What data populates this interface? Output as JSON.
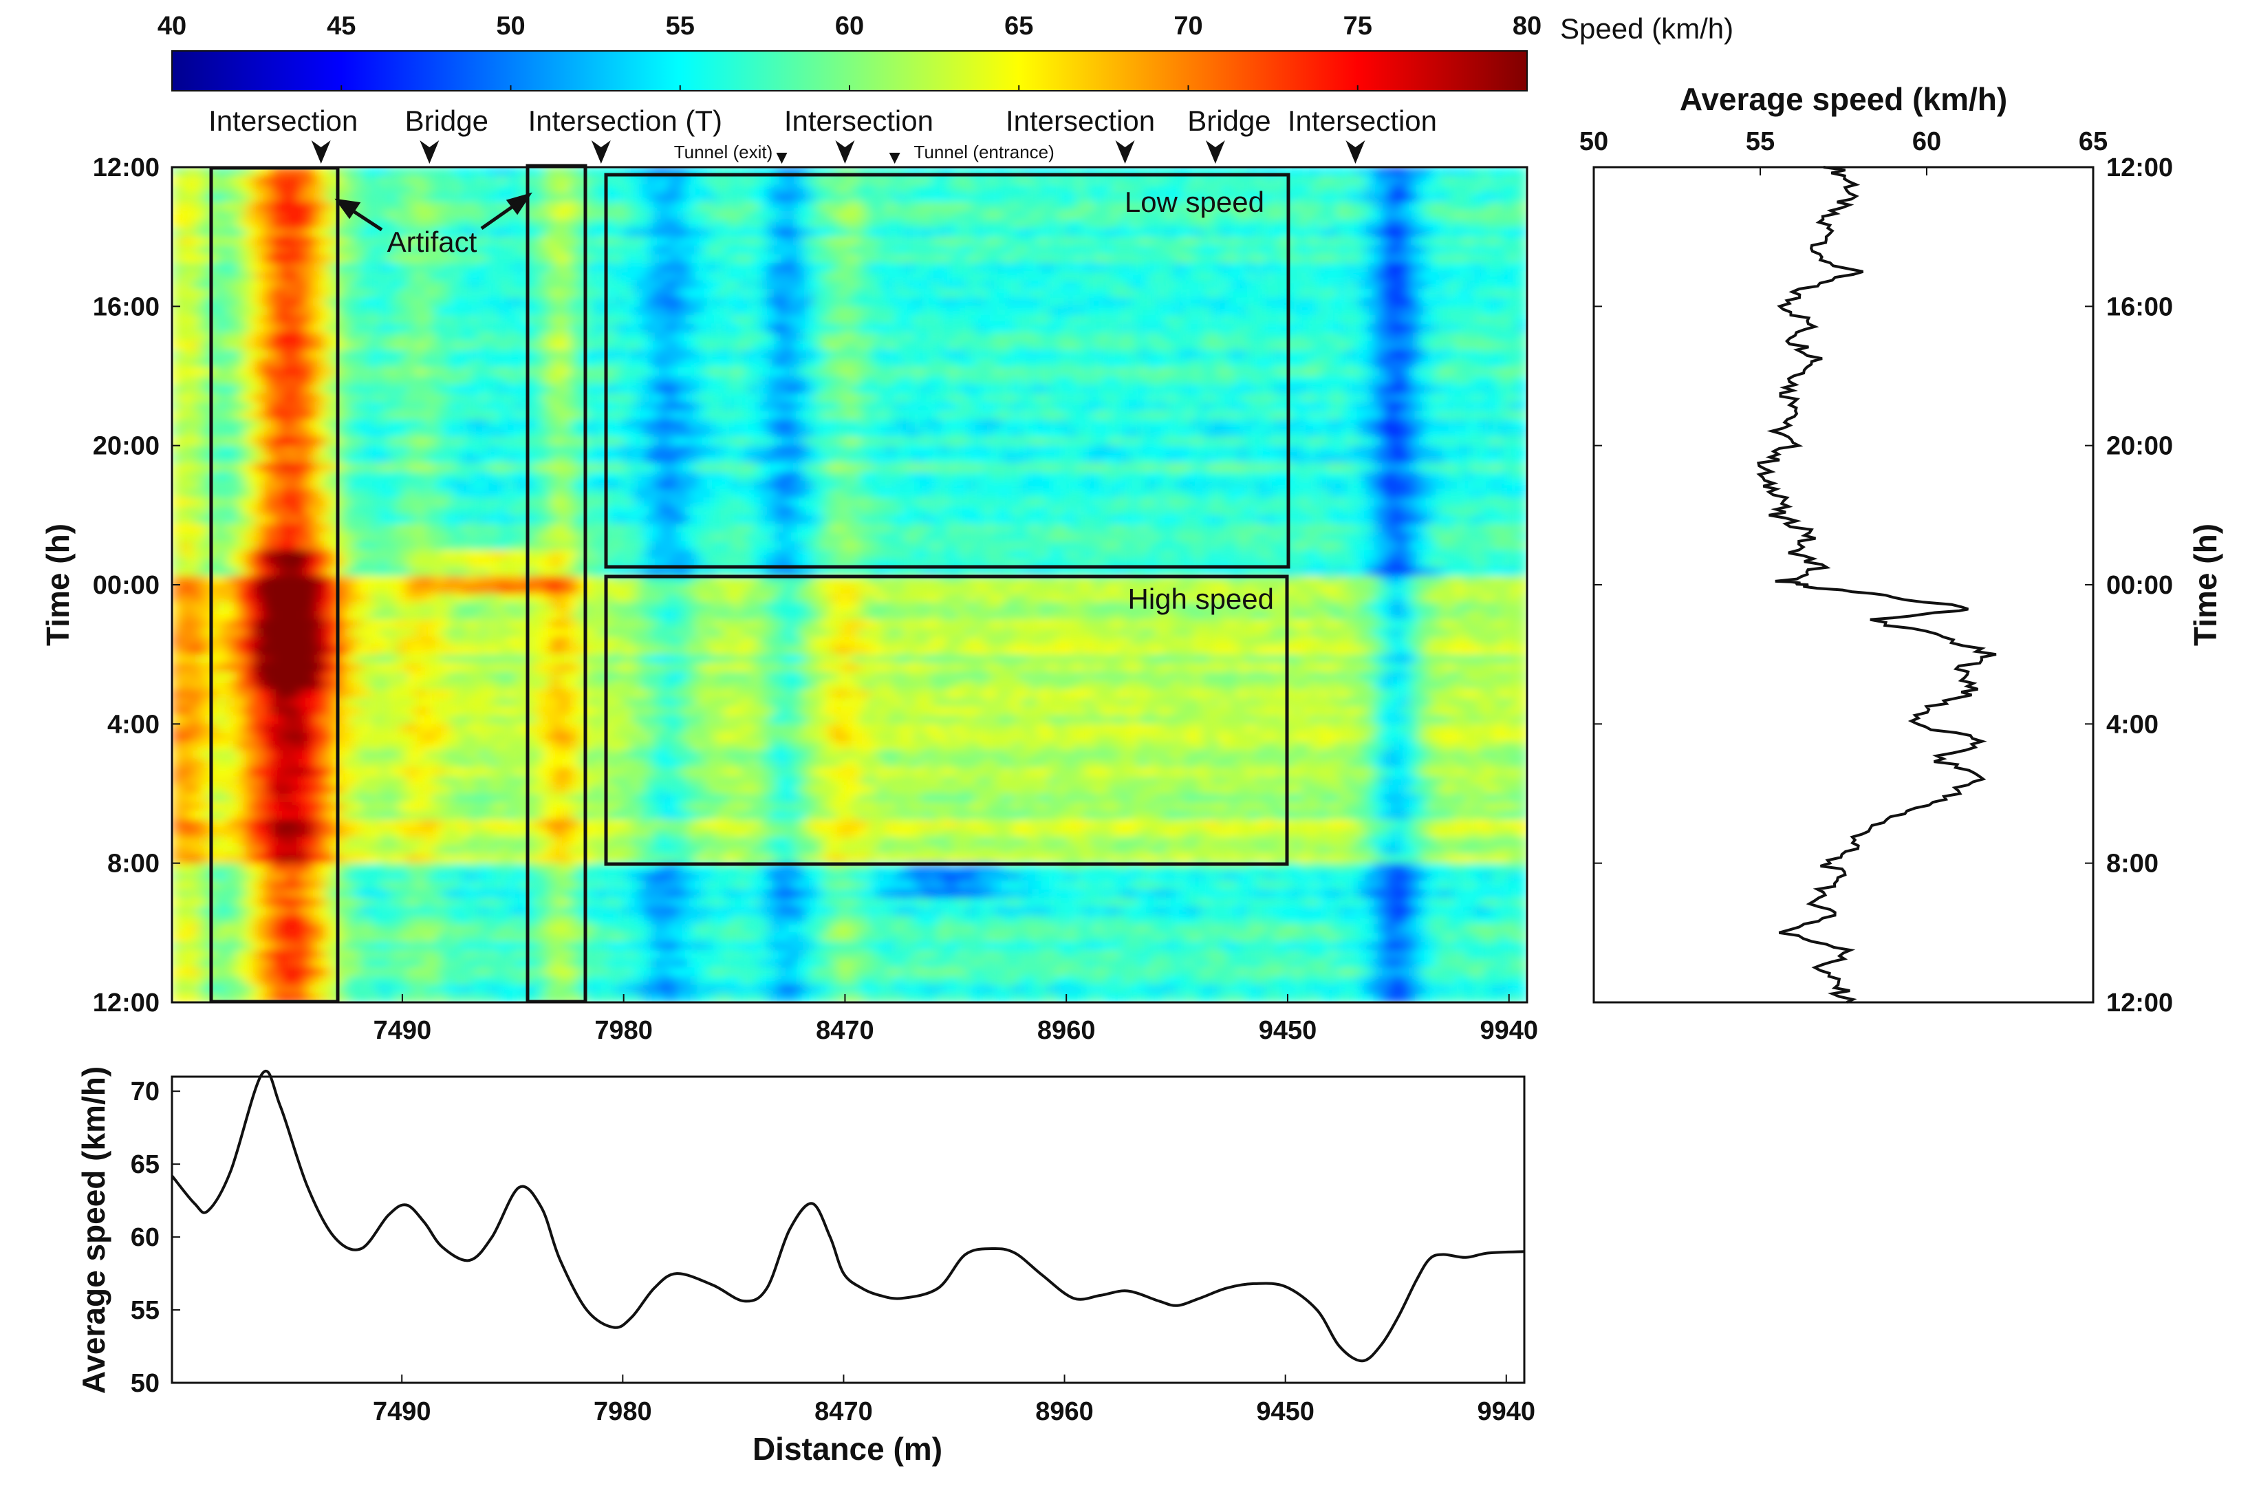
{
  "colorbar": {
    "label": "Speed (km/h)",
    "range": [
      40,
      80
    ],
    "ticks": [
      "40",
      "45",
      "50",
      "55",
      "60",
      "65",
      "70",
      "75",
      "80"
    ],
    "colormap": "jet"
  },
  "heatmap": {
    "ylabel": "Time (h)",
    "y_ticks": [
      "12:00",
      "16:00",
      "20:00",
      "00:00",
      "4:00",
      "8:00",
      "12:00"
    ],
    "x_ticks": [
      "7490",
      "7980",
      "8470",
      "8960",
      "9450",
      "9940"
    ],
    "distance_range_m": [
      6980,
      9980
    ],
    "landmarks": [
      {
        "label": "Intersection",
        "distance_m": 7310
      },
      {
        "label": "Bridge",
        "distance_m": 7550
      },
      {
        "label": "Intersection (T)",
        "distance_m": 7930
      },
      {
        "label": "Tunnel (exit)",
        "distance_m": 8330
      },
      {
        "label": "Intersection",
        "distance_m": 8470
      },
      {
        "label": "Tunnel (entrance)",
        "distance_m": 8580
      },
      {
        "label": "Intersection",
        "distance_m": 9090
      },
      {
        "label": "Bridge",
        "distance_m": 9290
      },
      {
        "label": "Intersection",
        "distance_m": 9600
      }
    ],
    "annotations": {
      "artifact": "Artifact",
      "low_speed": "Low speed",
      "high_speed": "High speed"
    },
    "low_speed_box": {
      "distance_m": [
        7990,
        9495
      ],
      "time_h": [
        0.2,
        11.6
      ]
    },
    "high_speed_box": {
      "distance_m": [
        7990,
        9495
      ],
      "time_h": [
        11.8,
        20.0
      ]
    },
    "artifact_boxes": [
      {
        "distance_m": [
          7070,
          7350
        ],
        "time_h": [
          0,
          24
        ]
      },
      {
        "distance_m": [
          7770,
          7900
        ],
        "time_h": [
          0,
          24
        ]
      }
    ]
  },
  "chart_data": [
    {
      "type": "heatmap",
      "title": "",
      "xlabel": "Distance (m)",
      "ylabel": "Time (h)",
      "x_range": [
        6980,
        9980
      ],
      "y_range_hours_from_noon": [
        0,
        24
      ],
      "value_range": [
        40,
        80
      ],
      "value_label": "Speed (km/h)"
    },
    {
      "type": "line",
      "title": "",
      "xlabel": "Distance (m)",
      "ylabel": "Average speed (km/h)",
      "xlim": [
        6980,
        9980
      ],
      "ylim": [
        50,
        71
      ],
      "y_ticks": [
        "50",
        "55",
        "60",
        "65",
        "70"
      ],
      "x_ticks": [
        "7490",
        "7980",
        "8470",
        "8960",
        "9450",
        "9940"
      ],
      "x": [
        6980,
        7030,
        7060,
        7110,
        7180,
        7220,
        7280,
        7340,
        7400,
        7460,
        7500,
        7540,
        7580,
        7640,
        7690,
        7750,
        7800,
        7840,
        7900,
        7960,
        8000,
        8050,
        8100,
        8180,
        8250,
        8300,
        8350,
        8400,
        8440,
        8470,
        8510,
        8550,
        8600,
        8680,
        8740,
        8800,
        8850,
        8910,
        8980,
        9040,
        9100,
        9170,
        9210,
        9260,
        9320,
        9380,
        9450,
        9520,
        9570,
        9620,
        9660,
        9700,
        9740,
        9770,
        9800,
        9850,
        9900,
        9980
      ],
      "values": [
        64.2,
        62.3,
        61.8,
        64.5,
        71.2,
        69.0,
        63.5,
        60.0,
        59.2,
        61.5,
        62.2,
        61.0,
        59.3,
        58.4,
        60.0,
        63.4,
        62.0,
        58.5,
        55.0,
        53.8,
        54.5,
        56.5,
        57.5,
        56.7,
        55.6,
        56.5,
        60.5,
        62.3,
        60.0,
        57.5,
        56.5,
        56.0,
        55.8,
        56.5,
        58.8,
        59.2,
        58.9,
        57.4,
        55.8,
        56.0,
        56.3,
        55.6,
        55.3,
        55.8,
        56.5,
        56.8,
        56.6,
        55.0,
        52.5,
        51.5,
        52.5,
        54.5,
        57.0,
        58.5,
        58.8,
        58.6,
        58.9,
        59.0
      ]
    },
    {
      "type": "line",
      "title": "Average speed (km/h)",
      "xlabel": "Average speed (km/h)",
      "ylabel": "Time (h)",
      "xlim": [
        50,
        65
      ],
      "x_ticks": [
        "50",
        "55",
        "60",
        "65"
      ],
      "y_ticks": [
        "12:00",
        "16:00",
        "20:00",
        "00:00",
        "4:00",
        "8:00",
        "12:00"
      ],
      "time_h": [
        0.0,
        0.5,
        1.0,
        1.5,
        2.0,
        2.5,
        3.0,
        3.5,
        4.0,
        4.5,
        5.0,
        5.5,
        6.0,
        6.5,
        7.0,
        7.5,
        8.0,
        8.5,
        9.0,
        9.5,
        10.0,
        10.5,
        11.0,
        11.5,
        11.9,
        12.0,
        12.3,
        12.7,
        13.0,
        13.5,
        14.0,
        14.5,
        15.0,
        15.5,
        16.0,
        16.5,
        17.0,
        17.5,
        18.0,
        18.5,
        19.0,
        19.5,
        20.0,
        20.5,
        21.0,
        21.5,
        22.0,
        22.5,
        23.0,
        23.5,
        24.0
      ],
      "values": [
        57.2,
        57.8,
        57.5,
        56.8,
        57.2,
        56.5,
        57.8,
        56.2,
        55.8,
        56.5,
        56.0,
        56.8,
        56.2,
        55.8,
        56.3,
        55.5,
        55.9,
        55.2,
        55.0,
        55.8,
        55.4,
        56.6,
        56.0,
        56.8,
        55.7,
        56.2,
        58.5,
        61.5,
        58.3,
        60.5,
        61.8,
        61.0,
        61.5,
        60.2,
        59.5,
        61.8,
        60.2,
        61.7,
        60.8,
        59.5,
        58.2,
        57.8,
        57.0,
        57.5,
        56.5,
        57.3,
        55.6,
        57.8,
        56.8,
        57.3,
        57.6
      ]
    }
  ]
}
